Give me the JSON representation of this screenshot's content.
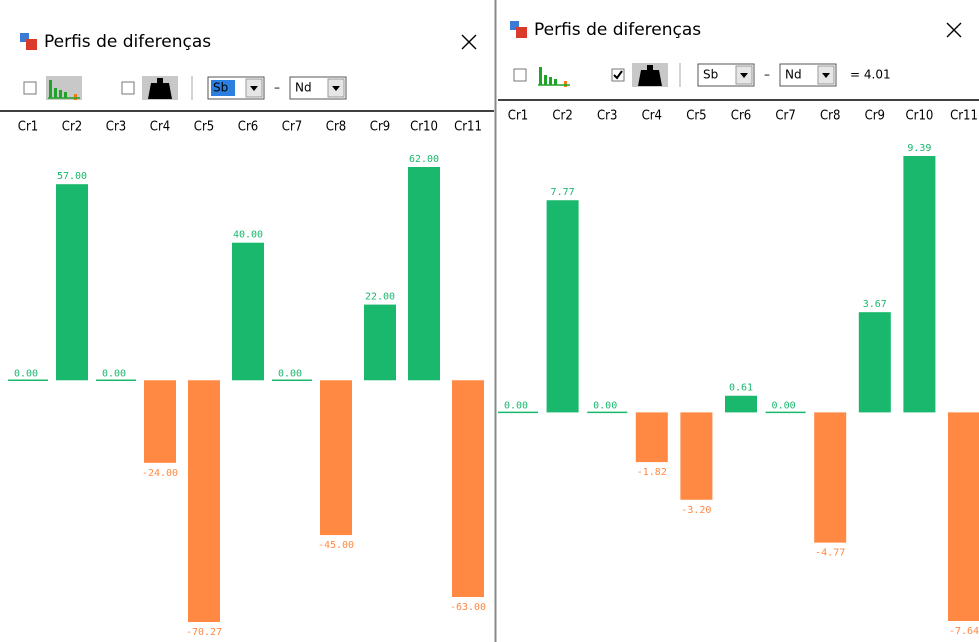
{
  "windows": [
    {
      "title": "Perfis de diferenças",
      "toolbar": {
        "element_a": "Sb",
        "separator": "–",
        "element_b": "Nd",
        "weight_checked": false
      },
      "chart": {
        "type": "bar",
        "categories": [
          "Cr1",
          "Cr2",
          "Cr3",
          "Cr4",
          "Cr5",
          "Cr6",
          "Cr7",
          "Cr8",
          "Cr9",
          "Cr10",
          "Cr11"
        ],
        "values": [
          0,
          57,
          0,
          -24,
          -70.27,
          40,
          0,
          -45,
          22,
          62,
          -63
        ],
        "value_labels": [
          "0.00",
          "57.00",
          "0.00",
          "-24.00",
          "-70.27",
          "40.00",
          "0.00",
          "-45.00",
          "22.00",
          "62.00",
          "-63.00"
        ],
        "positive_color": "#19b86c",
        "negative_color": "#ff8843"
      }
    },
    {
      "title": "Perfis de diferenças",
      "toolbar": {
        "element_a": "Sb",
        "separator": "–",
        "element_b": "Nd",
        "weight_checked": true,
        "ratio": "= 4.01"
      },
      "chart": {
        "type": "bar",
        "categories": [
          "Cr1",
          "Cr2",
          "Cr3",
          "Cr4",
          "Cr5",
          "Cr6",
          "Cr7",
          "Cr8",
          "Cr9",
          "Cr10",
          "Cr11"
        ],
        "values": [
          0,
          7.77,
          0,
          -1.82,
          -3.2,
          0.61,
          0,
          -4.77,
          3.67,
          9.39,
          -7.64
        ],
        "value_labels": [
          "0.00",
          "7.77",
          "0.00",
          "-1.82",
          "-3.20",
          "0.61",
          "0.00",
          "-4.77",
          "3.67",
          "9.39",
          "-7.64"
        ],
        "positive_color": "#19b86c",
        "negative_color": "#ff8843"
      }
    }
  ]
}
